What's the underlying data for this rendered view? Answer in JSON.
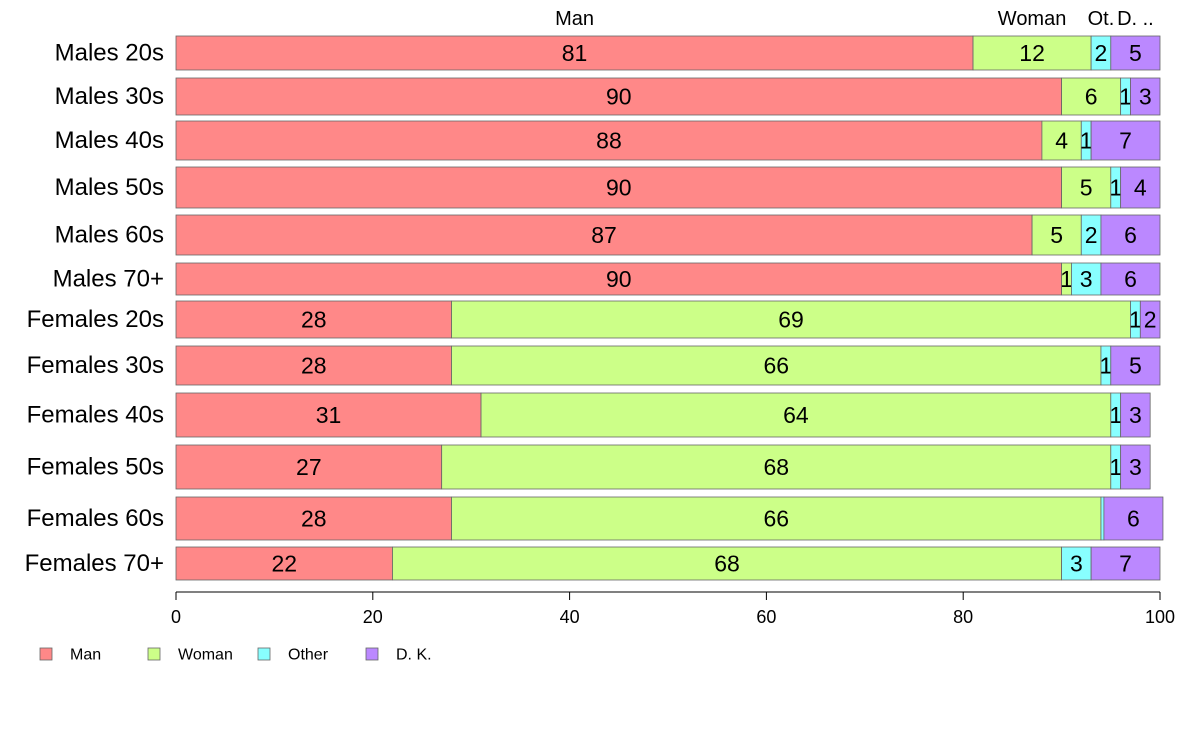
{
  "chart_data": {
    "type": "bar",
    "orientation": "horizontal",
    "stacked": true,
    "categories": [
      "Males 20s",
      "Males 30s",
      "Males 40s",
      "Males 50s",
      "Males 60s",
      "Males 70+",
      "Females 20s",
      "Females 30s",
      "Females 40s",
      "Females 50s",
      "Females 60s",
      "Females 70+"
    ],
    "series": [
      {
        "name": "Man",
        "color": "#ff8888",
        "values": [
          81,
          90,
          88,
          90,
          87,
          90,
          28,
          28,
          31,
          27,
          28,
          22
        ]
      },
      {
        "name": "Woman",
        "color": "#ccff88",
        "values": [
          12,
          6,
          4,
          5,
          5,
          1,
          69,
          66,
          64,
          68,
          66,
          68
        ]
      },
      {
        "name": "Other",
        "color": "#88ffff",
        "values": [
          2,
          1,
          1,
          1,
          2,
          3,
          1,
          1,
          1,
          1,
          0.3,
          3
        ]
      },
      {
        "name": "D. K.",
        "color": "#bb88ff",
        "values": [
          5,
          3,
          7,
          4,
          6,
          6,
          2,
          5,
          3,
          3,
          6,
          7
        ]
      }
    ],
    "data_labels": [
      [
        "81",
        "12",
        "2",
        "5"
      ],
      [
        "90",
        "6",
        "1",
        "3"
      ],
      [
        "88",
        "4",
        "1",
        "7"
      ],
      [
        "90",
        "5",
        "1",
        "4"
      ],
      [
        "87",
        "5",
        "2",
        "6"
      ],
      [
        "90",
        "1",
        "3",
        "6"
      ],
      [
        "28",
        "69",
        "1",
        "2"
      ],
      [
        "28",
        "66",
        "1",
        "5"
      ],
      [
        "31",
        "64",
        "1",
        "3"
      ],
      [
        "27",
        "68",
        "1",
        "3"
      ],
      [
        "28",
        "66",
        "",
        "6"
      ],
      [
        "22",
        "68",
        "3",
        "7"
      ]
    ],
    "top_labels": [
      "Man",
      "Woman",
      "Ot.",
      "D. .."
    ],
    "x_ticks": [
      "0",
      "20",
      "40",
      "60",
      "80",
      "100"
    ],
    "xlim": [
      0,
      100
    ],
    "legend": {
      "position": "bottom-left",
      "entries": [
        "Man",
        "Woman",
        "Other",
        "D. K."
      ]
    },
    "grid": false
  }
}
